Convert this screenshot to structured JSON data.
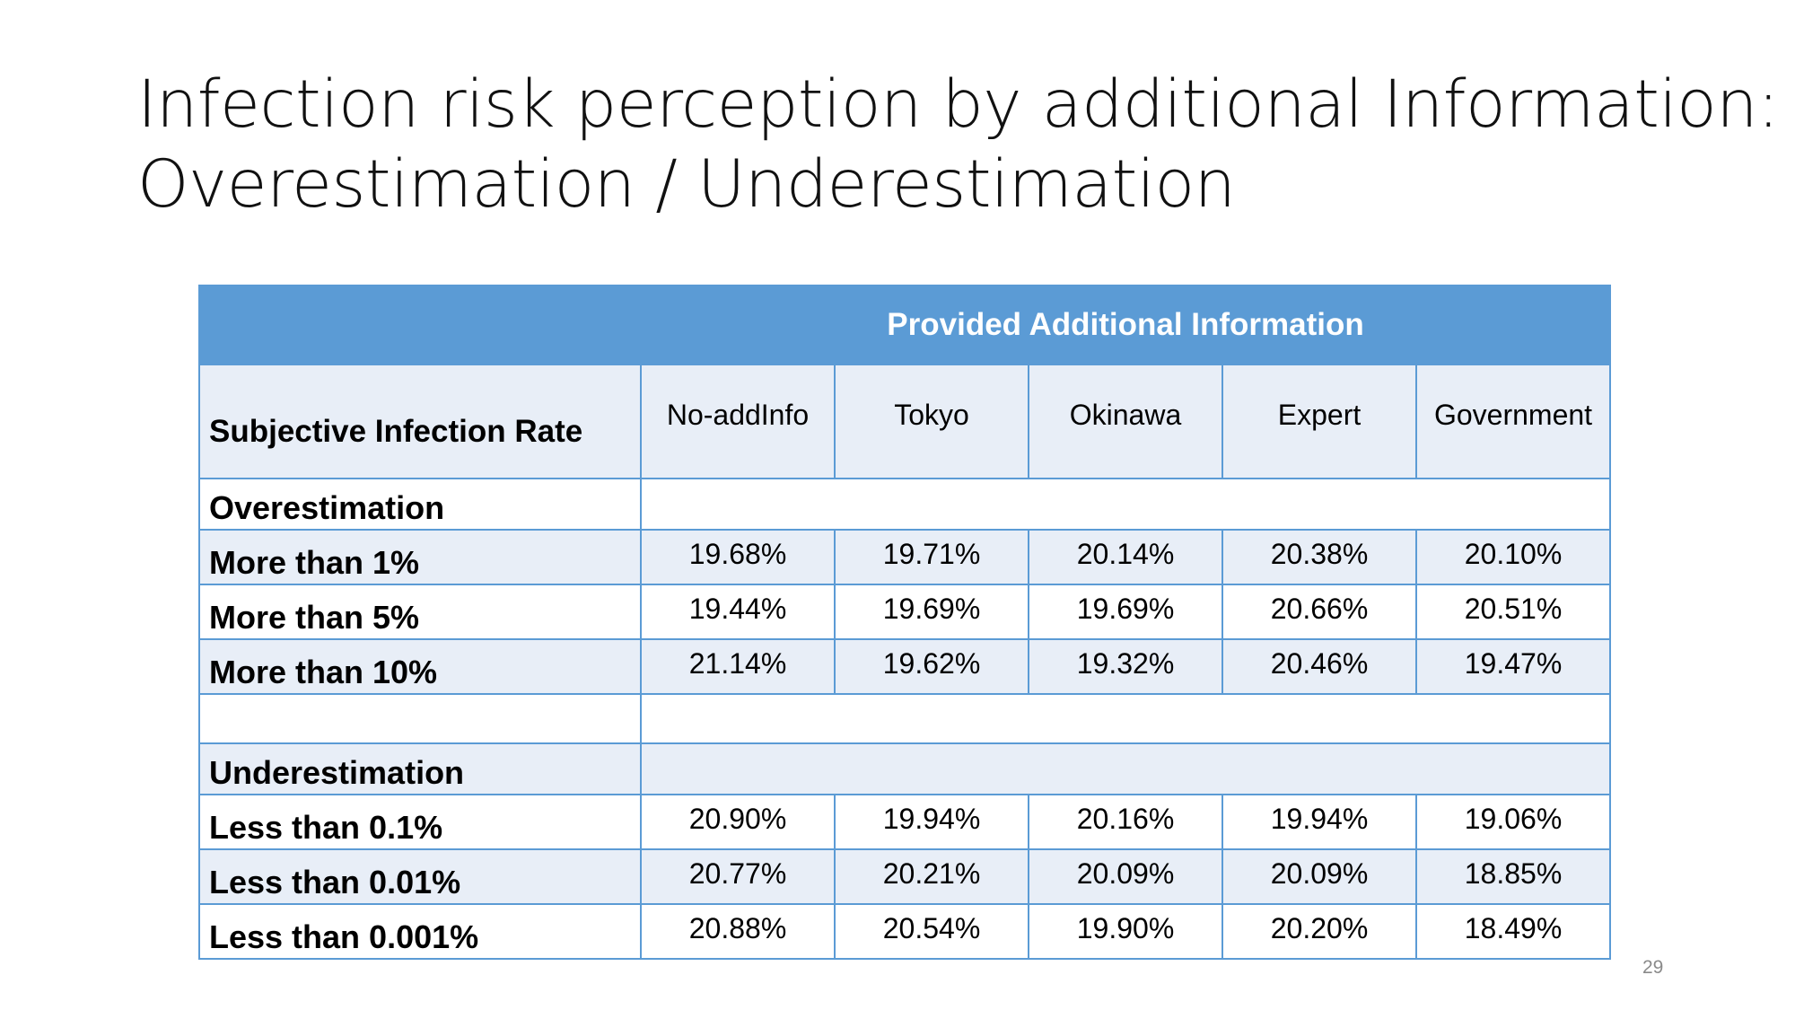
{
  "slide": {
    "title_line1": "Infection risk perception by additional Information:",
    "title_line2": "Overestimation / Underestimation",
    "page_number": "29"
  },
  "table": {
    "group_header": "Provided Additional Information",
    "stub_header": "Subjective Infection Rate",
    "columns": [
      "No-addInfo",
      "Tokyo",
      "Okinawa",
      "Expert",
      "Government"
    ],
    "over_heading": "Overestimation",
    "over_rows": [
      {
        "label": "More than 1%",
        "values": [
          "19.68%",
          "19.71%",
          "20.14%",
          "20.38%",
          "20.10%"
        ]
      },
      {
        "label": "More than 5%",
        "values": [
          "19.44%",
          "19.69%",
          "19.69%",
          "20.66%",
          "20.51%"
        ]
      },
      {
        "label": "More than 10%",
        "values": [
          "21.14%",
          "19.62%",
          "19.32%",
          "20.46%",
          "19.47%"
        ]
      }
    ],
    "under_heading": "Underestimation",
    "under_rows": [
      {
        "label": "Less than 0.1%",
        "values": [
          "20.90%",
          "19.94%",
          "20.16%",
          "19.94%",
          "19.06%"
        ]
      },
      {
        "label": "Less than 0.01%",
        "values": [
          "20.77%",
          "20.21%",
          "20.09%",
          "20.09%",
          "18.85%"
        ]
      },
      {
        "label": "Less than 0.001%",
        "values": [
          "20.88%",
          "20.54%",
          "19.90%",
          "20.20%",
          "18.49%"
        ]
      }
    ]
  }
}
